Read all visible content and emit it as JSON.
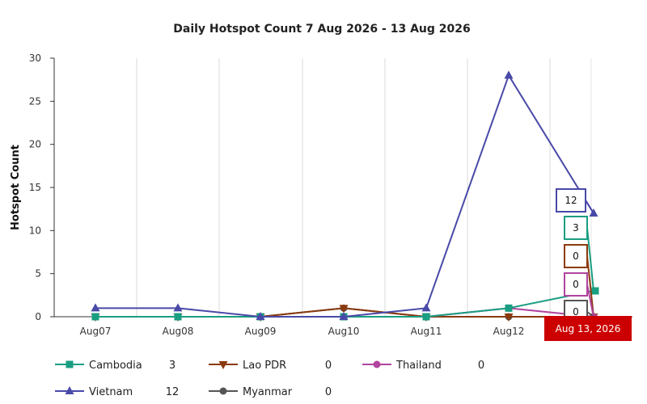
{
  "chart_data": {
    "type": "line",
    "title": "Daily Hotspot Count 7 Aug 2026 - 13 Aug 2026",
    "ylabel": "Hotspot Count",
    "xlabel": "",
    "categories": [
      "Aug07",
      "Aug08",
      "Aug09",
      "Aug10",
      "Aug11",
      "Aug12",
      "Aug 13, 2026"
    ],
    "x_tick_labels": [
      "Aug07",
      "Aug08",
      "Aug09",
      "Aug10",
      "Aug11",
      "Aug12"
    ],
    "ylim": [
      0,
      30
    ],
    "yticks": [
      0,
      5,
      10,
      15,
      20,
      25,
      30
    ],
    "grid": "vertical",
    "legend_placement": "bottom",
    "tooltip_label": "Aug 13, 2026",
    "series": [
      {
        "name": "Cambodia",
        "color": "#1a9e82",
        "marker": "square",
        "values": [
          0,
          0,
          0,
          0,
          0,
          1,
          3
        ],
        "latest": "3"
      },
      {
        "name": "Lao PDR",
        "color": "#8b3a0e",
        "marker": "triangle-down",
        "values": [
          0,
          0,
          0,
          1,
          0,
          0,
          0
        ],
        "latest": "0"
      },
      {
        "name": "Thailand",
        "color": "#b0449e",
        "marker": "circle",
        "values": [
          0,
          0,
          0,
          0,
          0,
          1,
          0
        ],
        "latest": "0"
      },
      {
        "name": "Vietnam",
        "color": "#4949a8",
        "marker": "triangle",
        "values": [
          1,
          1,
          0,
          0,
          1,
          28,
          12
        ],
        "latest": "12"
      },
      {
        "name": "Myanmar",
        "color": "#555555",
        "marker": "circle",
        "values": [
          0,
          0,
          0,
          1,
          0,
          0,
          0
        ],
        "latest": "0"
      }
    ]
  }
}
